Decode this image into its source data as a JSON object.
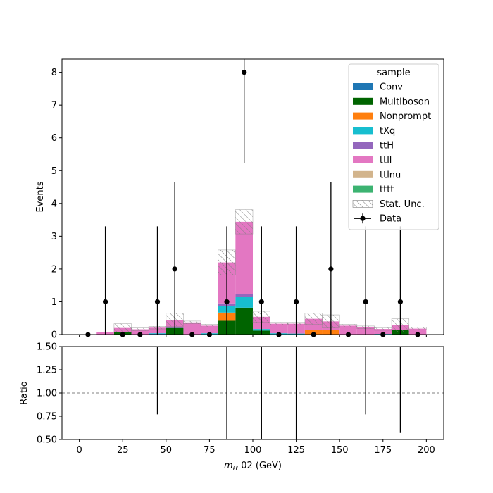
{
  "chart_data": [
    {
      "type": "bar",
      "stacked": true,
      "panel": "main",
      "ylabel": "Events",
      "xlim": [
        -10,
        210
      ],
      "ylim": [
        0,
        8.4
      ],
      "yticks": [
        0,
        1,
        2,
        3,
        4,
        5,
        6,
        7,
        8
      ],
      "ytick_labels": [
        "0",
        "1",
        "2",
        "3",
        "4",
        "5",
        "6",
        "7",
        "8"
      ],
      "bin_edges": [
        0,
        10,
        20,
        30,
        40,
        50,
        60,
        70,
        80,
        90,
        100,
        110,
        120,
        130,
        140,
        150,
        160,
        170,
        180,
        190,
        200
      ],
      "series": [
        {
          "name": "Conv",
          "color": "#1f77b4",
          "values": [
            0,
            0,
            0,
            0,
            0.02,
            0,
            0,
            0,
            0,
            0,
            0,
            0,
            0,
            0,
            0,
            0,
            0,
            0,
            0,
            0
          ]
        },
        {
          "name": "Multiboson",
          "color": "#006400",
          "values": [
            0,
            0,
            0.08,
            0,
            0,
            0.2,
            0,
            0,
            0.42,
            0.82,
            0.12,
            0,
            0,
            0,
            0,
            0,
            0,
            0,
            0.15,
            0
          ]
        },
        {
          "name": "Nonprompt",
          "color": "#ff7f0e",
          "values": [
            0,
            0,
            0,
            0,
            0,
            0,
            0,
            0,
            0.25,
            0,
            0,
            0,
            0,
            0.15,
            0.15,
            0,
            0,
            0,
            0,
            0
          ]
        },
        {
          "name": "tXq",
          "color": "#17becf",
          "values": [
            0,
            0,
            0,
            0,
            0.02,
            0,
            0,
            0.04,
            0.2,
            0.32,
            0.05,
            0.04,
            0.03,
            0,
            0,
            0,
            0,
            0.02,
            0,
            0
          ]
        },
        {
          "name": "ttH",
          "color": "#9467bd",
          "values": [
            0,
            0,
            0,
            0,
            0,
            0.03,
            0,
            0,
            0.08,
            0.1,
            0,
            0,
            0,
            0,
            0,
            0,
            0,
            0,
            0,
            0
          ]
        },
        {
          "name": "ttll",
          "color": "#e377c2",
          "values": [
            0,
            0.08,
            0.12,
            0.16,
            0.17,
            0.22,
            0.37,
            0.23,
            1.25,
            2.2,
            0.37,
            0.29,
            0.3,
            0.33,
            0.25,
            0.27,
            0.22,
            0.15,
            0.13,
            0.18
          ]
        },
        {
          "name": "ttlnu",
          "color": "#d2b48c",
          "values": [
            0,
            0,
            0,
            0,
            0,
            0,
            0,
            0,
            0,
            0,
            0,
            0,
            0,
            0,
            0,
            0,
            0,
            0,
            0,
            0
          ]
        },
        {
          "name": "tttt",
          "color": "#3cb371",
          "values": [
            0,
            0,
            0,
            0,
            0,
            0,
            0,
            0,
            0,
            0,
            0,
            0,
            0,
            0,
            0,
            0,
            0,
            0,
            0,
            0
          ]
        }
      ],
      "stat_unc_halfwidth": [
        0,
        0,
        0.13,
        0.04,
        0.04,
        0.2,
        0.04,
        0.04,
        0.38,
        0.37,
        0.17,
        0.04,
        0.04,
        0.17,
        0.2,
        0.04,
        0.04,
        0.04,
        0.2,
        0.04
      ],
      "data_points": {
        "name": "Data",
        "x": [
          5,
          15,
          25,
          35,
          45,
          55,
          65,
          75,
          85,
          95,
          105,
          115,
          125,
          135,
          145,
          155,
          165,
          175,
          185,
          195
        ],
        "y": [
          0,
          1,
          0,
          0,
          1,
          2,
          0,
          0,
          1,
          8,
          1,
          0,
          1,
          0,
          2,
          0,
          1,
          0,
          1,
          0
        ],
        "yerr": [
          0,
          2.3,
          0,
          0,
          2.3,
          2.64,
          0,
          0,
          2.3,
          2.77,
          2.3,
          0,
          2.3,
          0,
          2.64,
          0,
          2.3,
          0,
          2.3,
          0
        ]
      },
      "legend": {
        "title": "sample",
        "placement": "upper right",
        "entries": [
          "Conv",
          "Multiboson",
          "Nonprompt",
          "tXq",
          "ttH",
          "ttll",
          "ttlnu",
          "tttt",
          "Stat. Unc.",
          "Data"
        ]
      }
    },
    {
      "type": "scatter",
      "panel": "ratio",
      "xlabel": "m_ℓℓ 02 (GeV)",
      "ylabel": "Ratio",
      "xlim": [
        -10,
        210
      ],
      "ylim": [
        0.5,
        1.5
      ],
      "xticks": [
        0,
        25,
        50,
        75,
        100,
        125,
        150,
        175,
        200
      ],
      "xtick_labels": [
        "0",
        "25",
        "50",
        "75",
        "100",
        "125",
        "150",
        "175",
        "200"
      ],
      "yticks": [
        0.5,
        0.75,
        1.0,
        1.25,
        1.5
      ],
      "ytick_labels": [
        "0.50",
        "0.75",
        "1.00",
        "1.25",
        "1.50"
      ],
      "reference_line": 1.0,
      "error_bars": [
        {
          "x": 45,
          "low": 0.77,
          "high": 1.5
        },
        {
          "x": 85,
          "low": 0.5,
          "high": 1.5
        },
        {
          "x": 105,
          "low": 0.5,
          "high": 1.5
        },
        {
          "x": 125,
          "low": 0.5,
          "high": 1.5
        },
        {
          "x": 165,
          "low": 0.77,
          "high": 1.5
        },
        {
          "x": 185,
          "low": 0.57,
          "high": 1.5
        }
      ]
    }
  ]
}
